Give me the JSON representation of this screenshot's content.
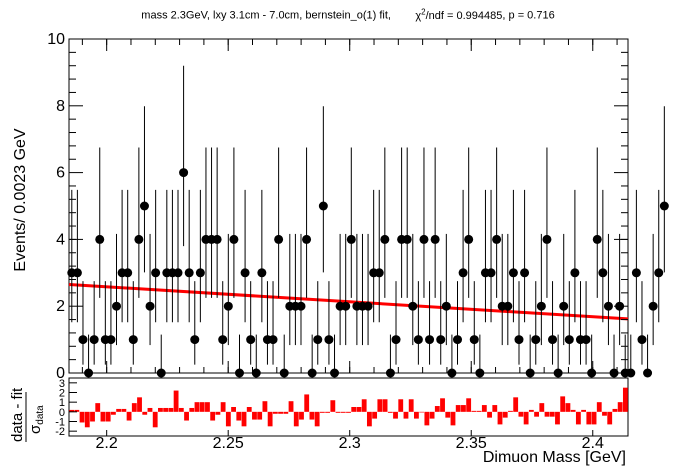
{
  "chart_data": {
    "type": "scatter",
    "title": "mass 2.3GeV, lxy 3.1cm - 7.0cm, bernstein_o(1) fit,",
    "fit_stats": {
      "chi2_label": "χ²/ndf = 0.994485",
      "chi2_prefix": "χ",
      "chi2_sup": "2",
      "chi2_suffix": "/ndf = 0.994485",
      "p_label": "p = 0.716"
    },
    "xlabel": "Dimuon Mass [GeV]",
    "ylabel": "Events/ 0.0023 GeV",
    "ratio_ylabel_num": "data - fit",
    "ratio_ylabel_den": "σ",
    "ratio_ylabel_den_sub": "data",
    "xlim": [
      2.1845,
      2.4145
    ],
    "ylim": [
      0,
      10
    ],
    "ratio_ylim": [
      -2.5,
      3.5
    ],
    "x_ticks": [
      2.2,
      2.25,
      2.3,
      2.35,
      2.4
    ],
    "y_ticks": [
      0,
      2,
      4,
      6,
      8,
      10
    ],
    "ratio_y_ticks": [
      -2,
      -1,
      0,
      1,
      2,
      3
    ],
    "bin_width": 0.0023,
    "series": [
      {
        "type": "points_with_errors",
        "color": "#000000",
        "y": [
          3,
          3,
          1,
          0,
          1,
          4,
          1,
          1,
          2,
          3,
          3,
          1,
          4,
          5,
          2,
          3,
          0,
          3,
          3,
          3,
          6,
          3,
          1,
          3,
          4,
          4,
          4,
          1,
          2,
          4,
          0,
          3,
          1,
          0,
          3,
          1,
          1,
          4,
          0,
          2,
          2,
          2,
          4,
          0,
          1,
          5,
          1,
          0,
          2,
          2,
          4,
          2,
          2,
          2,
          3,
          3,
          4,
          0,
          1,
          4,
          4,
          2,
          1,
          4,
          1,
          4,
          1,
          2,
          0,
          1,
          3,
          4,
          1,
          0,
          3,
          3,
          4,
          2,
          2,
          3,
          1,
          3,
          0,
          1,
          2,
          4,
          1,
          0,
          2,
          1,
          3,
          1,
          1,
          0,
          4,
          3,
          2,
          0,
          2,
          0,
          0,
          3,
          1,
          0,
          2,
          3,
          5
        ]
      },
      {
        "type": "fit_line",
        "color": "#ff0000",
        "x": [
          2.1845,
          2.4145
        ],
        "y": [
          2.65,
          1.62
        ]
      }
    ],
    "ratio": {
      "color": "#ff0000",
      "values": [
        0.2,
        0.2,
        -1.1,
        -1.6,
        -1.0,
        0.9,
        -1.0,
        -1.0,
        -0.3,
        0.3,
        0.3,
        -0.9,
        0.9,
        1.5,
        -0.3,
        0.4,
        -1.6,
        0.4,
        0.4,
        0.4,
        2.2,
        0.4,
        -0.9,
        0.4,
        1.0,
        1.0,
        1.0,
        -0.9,
        -0.3,
        1.0,
        -1.5,
        0.5,
        -0.9,
        -1.5,
        0.5,
        -0.8,
        -0.8,
        1.1,
        -1.5,
        -0.2,
        -0.2,
        -0.2,
        1.1,
        -1.5,
        -0.8,
        1.8,
        -0.8,
        -1.5,
        -0.1,
        -0.1,
        1.2,
        -0.1,
        -0.1,
        -0.1,
        0.5,
        0.5,
        1.3,
        -1.5,
        -0.7,
        1.3,
        1.3,
        -0.1,
        -0.7,
        1.3,
        -0.7,
        1.3,
        -0.7,
        0.0,
        -1.4,
        -0.7,
        0.6,
        1.4,
        -0.6,
        -1.4,
        0.7,
        0.7,
        1.4,
        0.1,
        0.1,
        0.7,
        -0.6,
        0.7,
        -1.3,
        -0.6,
        0.1,
        1.5,
        -0.5,
        -1.3,
        0.2,
        -0.5,
        0.9,
        -0.5,
        -0.5,
        -1.3,
        1.6,
        0.9,
        0.2,
        -1.3,
        0.2,
        -1.3,
        -1.3,
        1.0,
        -0.4,
        -1.3,
        0.3,
        1.0,
        2.5
      ]
    }
  }
}
